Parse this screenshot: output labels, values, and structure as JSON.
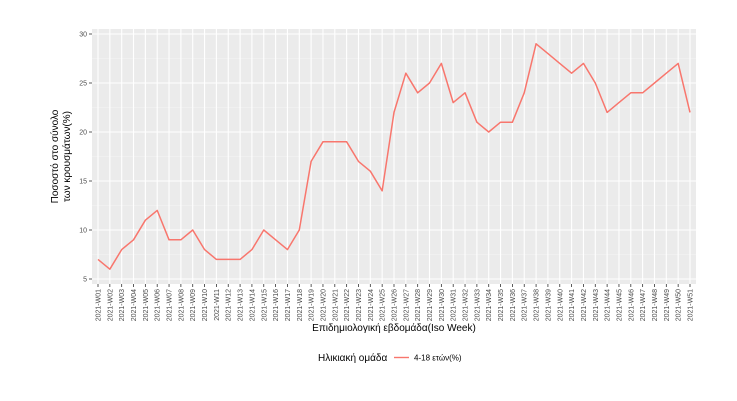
{
  "chart_data": {
    "type": "line",
    "title": "",
    "xlabel": "Επιδημιολογική εβδομάδα(Iso Week)",
    "ylabel_lines": [
      "Ποσοστό στο σύνολο",
      "των κρουσμάτων(%)"
    ],
    "ylim": [
      5,
      30
    ],
    "yticks": [
      5,
      10,
      15,
      20,
      25,
      30
    ],
    "grid": true,
    "legend": {
      "title": "Ηλικιακή ομάδα",
      "position": "bottom"
    },
    "categories": [
      "2021-W01",
      "2021-W02",
      "2021-W03",
      "2021-W04",
      "2021-W05",
      "2021-W06",
      "2021-W07",
      "2021-W08",
      "2021-W09",
      "2021-W10",
      "2021-W11",
      "2021-W12",
      "2021-W13",
      "2021-W14",
      "2021-W15",
      "2021-W16",
      "2021-W17",
      "2021-W18",
      "2021-W19",
      "2021-W20",
      "2021-W21",
      "2021-W22",
      "2021-W23",
      "2021-W24",
      "2021-W25",
      "2021-W26",
      "2021-W27",
      "2021-W28",
      "2021-W29",
      "2021-W30",
      "2021-W31",
      "2021-W32",
      "2021-W33",
      "2021-W34",
      "2021-W35",
      "2021-W36",
      "2021-W37",
      "2021-W38",
      "2021-W39",
      "2021-W40",
      "2021-W41",
      "2021-W42",
      "2021-W43",
      "2021-W44",
      "2021-W45",
      "2021-W46",
      "2021-W47",
      "2021-W48",
      "2021-W49",
      "2021-W50",
      "2021-W51"
    ],
    "series": [
      {
        "name": "4-18 ετών(%)",
        "color": "#F8766D",
        "values": [
          7,
          6,
          8,
          9,
          11,
          12,
          9,
          9,
          10,
          8,
          7,
          7,
          7,
          8,
          10,
          9,
          8,
          10,
          17,
          19,
          19,
          19,
          17,
          16,
          14,
          22,
          26,
          24,
          25,
          27,
          23,
          24,
          21,
          20,
          21,
          21,
          24,
          29,
          28,
          27,
          26,
          27,
          25,
          22,
          23,
          24,
          24,
          25,
          26,
          27,
          22
        ]
      }
    ]
  }
}
